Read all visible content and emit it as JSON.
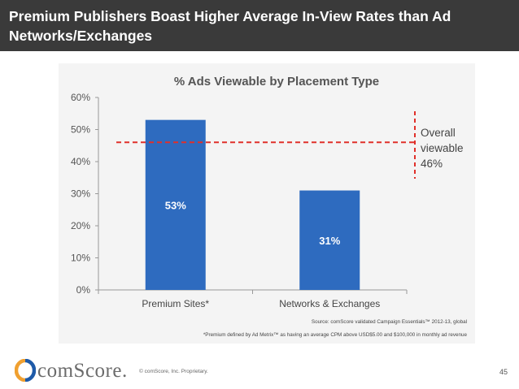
{
  "header": {
    "title": "Premium Publishers Boast Higher Average In-View Rates than Ad Networks/Exchanges"
  },
  "chart_data": {
    "type": "bar",
    "title": "% Ads Viewable  by Placement  Type",
    "categories": [
      "Premium Sites*",
      "Networks & Exchanges"
    ],
    "values": [
      53,
      31
    ],
    "value_labels": [
      "53%",
      "31%"
    ],
    "ylim": [
      0,
      60
    ],
    "yticks": [
      0,
      10,
      20,
      30,
      40,
      50,
      60
    ],
    "ytick_labels": [
      "0%",
      "10%",
      "20%",
      "30%",
      "40%",
      "50%",
      "60%"
    ],
    "reference_line": {
      "value": 46,
      "label_lines": [
        "Overall",
        "viewable",
        "46%"
      ],
      "color": "#e0302a"
    },
    "bar_color": "#2e6bbf",
    "grid": false,
    "source": "Source: comScore validated Campaign Essentials™ 2012-13, global",
    "footnote": "*Premium defined by Ad Metrix™ as having an average CPM above USD$5.00 and $100,000 in monthly ad revenue"
  },
  "footer": {
    "logo_text": "comScore.",
    "copyright": "© comScore, Inc.    Proprietary.",
    "page_number": "45",
    "logo_colors": {
      "orange": "#f0a030",
      "blue": "#1e5aa8"
    }
  }
}
